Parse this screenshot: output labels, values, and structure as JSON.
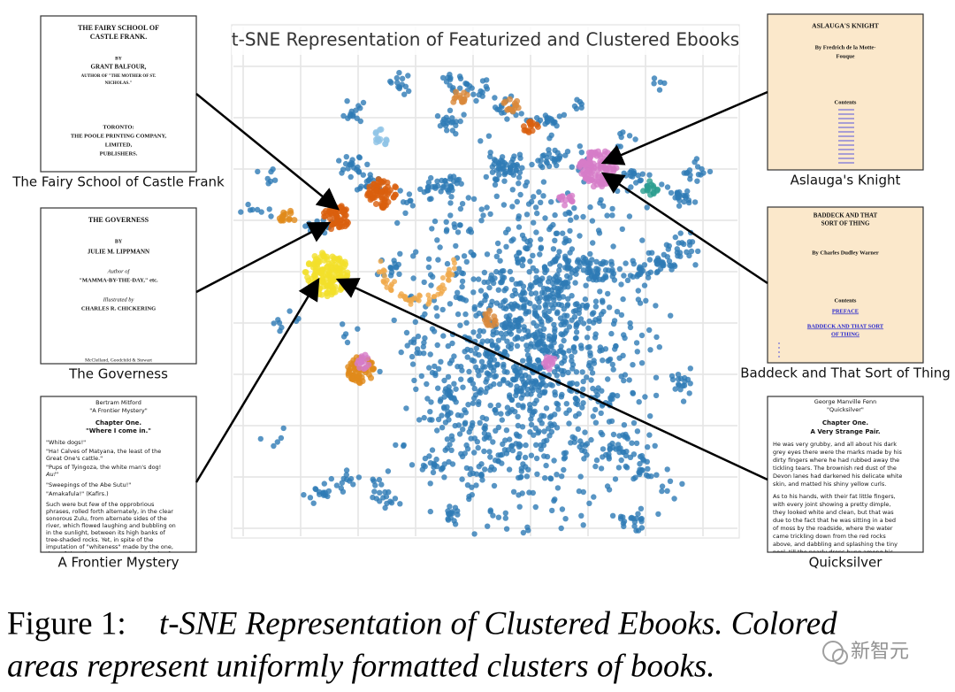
{
  "plot": {
    "title": "t-SNE Representation of Featurized and Clustered Ebooks"
  },
  "books": [
    {
      "label": "The Fairy School of Castle Frank",
      "lines": [
        "THE FAIRY SCHOOL OF",
        "CASTLE FRANK.",
        "BY",
        "GRANT BALFOUR,",
        "AUTHOR OF \"THE MOTHER OF ST.",
        "NICHOLAS.\"",
        "TORONTO:",
        "THE POOLE PRINTING COMPANY,",
        "LIMITED,",
        "PUBLISHERS."
      ]
    },
    {
      "label": "The Governess",
      "lines": [
        "THE GOVERNESS",
        "BY",
        "JULIE M. LIPPMANN",
        "Author of",
        "\"MAMMA-BY-THE-DAY,\" etc.",
        "Illustrated by",
        "CHARLES R. CHICKERING",
        "McClelland, Goodchild & Stewart"
      ]
    },
    {
      "label": "A Frontier Mystery",
      "lines": [
        "Bertram Mitford",
        "\"A Frontier Mystery\"",
        "Chapter One.",
        "\"Where I come in.\"",
        "\"White dogs!\"",
        "\"Ha! Calves of Matyana, the least of the",
        "Great One's cattle.\"",
        "\"Pups of Tyingoza, the white man's dog!",
        "Au!\"",
        "\"Sweepings of the Abe Sutu!\"",
        "\"Amakafula!\" (Kafirs.)",
        "Such were but few of the opprobrious",
        "phrases, rolled forth alternately, in the clear",
        "sonorous Zulu, from alternate sides of the",
        "river, which flowed laughing and bubbling on",
        "in the sunlight, between its high banks of",
        "tree-shaded rocks. Yet, in spite of the",
        "imputation of \"whiteness\" made by the one,",
        "they of the other party were in no shade of"
      ]
    },
    {
      "label": "Aslauga's Knight",
      "lines": [
        "ASLAUGA'S KNIGHT",
        "By Fredrich de la Motte-",
        "Fouque",
        "Contents"
      ]
    },
    {
      "label": "Baddeck and That Sort of Thing",
      "lines": [
        "BADDECK AND THAT",
        "SORT OF THING",
        "By Charles Dudley Warner",
        "Contents",
        "PREFACE",
        "BADDECK AND THAT SORT",
        "OF THING"
      ]
    },
    {
      "label": "Quicksilver",
      "lines": [
        "George Manville Fenn",
        "\"Quicksilver\"",
        "Chapter One.",
        "A Very Strange Pair.",
        "He was very grubby, and all about his dark",
        "grey eyes there were the marks made by his",
        "dirty fingers where he had rubbed away the",
        "tickling tears. The brownish red dust of the",
        "Devon lanes had darkened his delicate white",
        "skin, and matted his shiny yellow curls.",
        "As to his hands, with their fat little fingers,",
        "with every joint showing a pretty dimple,",
        "they looked white and clean, but that was",
        "due to the fact that he was sitting in a bed",
        "of moss by the roadside, where the water",
        "came trickling down from the red rocks",
        "above, and dabbling and splashing the tiny",
        "pool, till the pearly drops hung among his"
      ]
    }
  ],
  "caption": {
    "number": "Figure 1:",
    "line1": "t-SNE Representation of Clustered Ebooks. Colored",
    "line2": "areas represent uniformly formatted clusters of books."
  },
  "watermark": "新智元"
}
